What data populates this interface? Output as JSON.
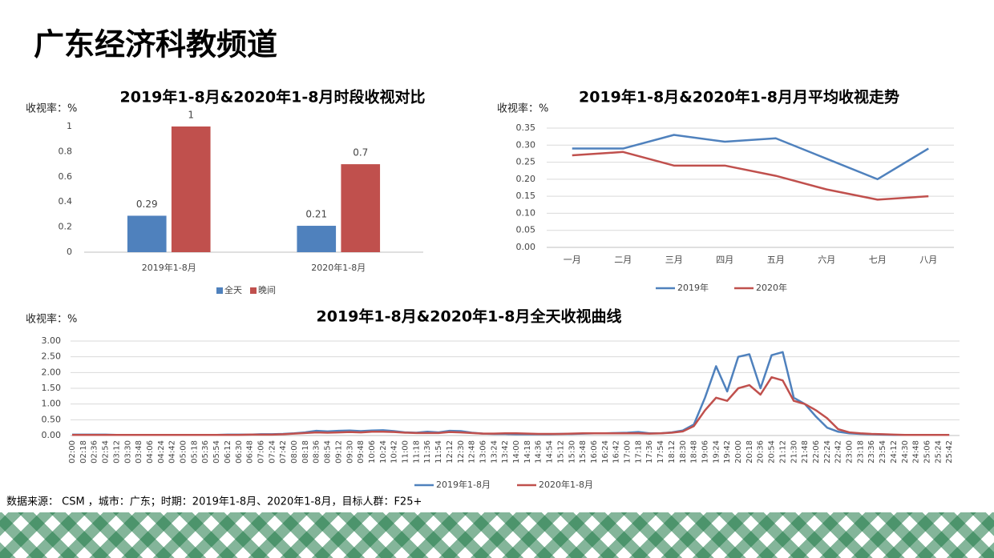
{
  "header": {
    "title": "广东经济科教频道"
  },
  "chart_data": [
    {
      "type": "bar",
      "title": "2019年1-8月&2020年1-8月时段收视对比",
      "y_label": "收视率：%",
      "categories": [
        "2019年1-8月",
        "2020年1-8月"
      ],
      "series": [
        {
          "name": "全天",
          "color": "#4f81bd",
          "values": [
            0.29,
            0.21
          ]
        },
        {
          "name": "晚间",
          "color": "#c0504d",
          "values": [
            1,
            0.7
          ]
        }
      ],
      "ylim": [
        0,
        1
      ],
      "yticks": [
        0,
        0.2,
        0.4,
        0.6,
        0.8,
        1
      ],
      "grid": false,
      "legend": "bottom"
    },
    {
      "type": "line",
      "title": "2019年1-8月&2020年1-8月月平均收视走势",
      "y_label": "收视率：%",
      "categories": [
        "一月",
        "二月",
        "三月",
        "四月",
        "五月",
        "六月",
        "七月",
        "八月"
      ],
      "series": [
        {
          "name": "2019年",
          "color": "#4f81bd",
          "values": [
            0.29,
            0.29,
            0.33,
            0.31,
            0.32,
            0.26,
            0.2,
            0.29
          ]
        },
        {
          "name": "2020年",
          "color": "#c0504d",
          "values": [
            0.27,
            0.28,
            0.24,
            0.24,
            0.21,
            0.17,
            0.14,
            0.15
          ]
        }
      ],
      "ylim": [
        0,
        0.35
      ],
      "yticks": [
        {
          "value": 0,
          "label": "0.00"
        },
        {
          "value": 0.05,
          "label": "0.05"
        },
        {
          "value": 0.1,
          "label": "0.10"
        },
        {
          "value": 0.15,
          "label": "0.15"
        },
        {
          "value": 0.2,
          "label": "0.20"
        },
        {
          "value": 0.25,
          "label": "0.25"
        },
        {
          "value": 0.3,
          "label": "0.30"
        },
        {
          "value": 0.35,
          "label": "0.35"
        }
      ],
      "grid": true,
      "legend": "bottom"
    },
    {
      "type": "line",
      "title": "2019年1-8月&2020年1-8月全天收视曲线",
      "y_label": "收视率：%",
      "categories": [
        "02:00",
        "02:18",
        "02:36",
        "02:54",
        "03:12",
        "03:30",
        "03:48",
        "04:06",
        "04:24",
        "04:42",
        "05:00",
        "05:18",
        "05:36",
        "05:54",
        "06:12",
        "06:30",
        "06:48",
        "07:06",
        "07:24",
        "07:42",
        "08:00",
        "08:18",
        "08:36",
        "08:54",
        "09:12",
        "09:30",
        "09:48",
        "10:06",
        "10:24",
        "10:42",
        "11:00",
        "11:18",
        "11:36",
        "11:54",
        "12:12",
        "12:30",
        "12:48",
        "13:06",
        "13:24",
        "13:42",
        "14:00",
        "14:18",
        "14:36",
        "14:54",
        "15:12",
        "15:30",
        "15:48",
        "16:06",
        "16:24",
        "16:42",
        "17:00",
        "17:18",
        "17:36",
        "17:54",
        "18:12",
        "18:30",
        "18:48",
        "19:06",
        "19:24",
        "19:42",
        "20:00",
        "20:18",
        "20:36",
        "20:54",
        "21:12",
        "21:30",
        "21:48",
        "22:06",
        "22:24",
        "22:42",
        "23:00",
        "23:18",
        "23:36",
        "23:54",
        "24:12",
        "24:30",
        "24:48",
        "25:06",
        "25:24",
        "25:42"
      ],
      "series": [
        {
          "name": "2019年1-8月",
          "color": "#4f81bd",
          "values": [
            0.03,
            0.03,
            0.03,
            0.03,
            0.02,
            0.02,
            0.02,
            0.02,
            0.02,
            0.02,
            0.02,
            0.02,
            0.02,
            0.02,
            0.03,
            0.03,
            0.03,
            0.04,
            0.04,
            0.05,
            0.07,
            0.1,
            0.15,
            0.13,
            0.15,
            0.16,
            0.14,
            0.16,
            0.17,
            0.14,
            0.1,
            0.09,
            0.12,
            0.1,
            0.15,
            0.14,
            0.09,
            0.06,
            0.05,
            0.05,
            0.04,
            0.04,
            0.04,
            0.04,
            0.05,
            0.05,
            0.06,
            0.07,
            0.07,
            0.08,
            0.09,
            0.11,
            0.07,
            0.07,
            0.1,
            0.16,
            0.35,
            1.2,
            2.2,
            1.4,
            2.5,
            2.58,
            1.5,
            2.55,
            2.65,
            1.2,
            1.0,
            0.6,
            0.25,
            0.12,
            0.07,
            0.05,
            0.04,
            0.03,
            0.02,
            0.02,
            0.02,
            0.02,
            0.02,
            0.02
          ]
        },
        {
          "name": "2020年1-8月",
          "color": "#c0504d",
          "values": [
            0.02,
            0.02,
            0.02,
            0.02,
            0.02,
            0.02,
            0.02,
            0.02,
            0.02,
            0.02,
            0.02,
            0.02,
            0.02,
            0.02,
            0.02,
            0.02,
            0.03,
            0.03,
            0.03,
            0.04,
            0.06,
            0.08,
            0.1,
            0.09,
            0.1,
            0.11,
            0.1,
            0.12,
            0.12,
            0.11,
            0.09,
            0.08,
            0.08,
            0.08,
            0.11,
            0.1,
            0.08,
            0.06,
            0.06,
            0.07,
            0.07,
            0.06,
            0.05,
            0.05,
            0.05,
            0.06,
            0.07,
            0.07,
            0.07,
            0.07,
            0.07,
            0.07,
            0.06,
            0.07,
            0.09,
            0.13,
            0.3,
            0.8,
            1.2,
            1.1,
            1.5,
            1.6,
            1.3,
            1.85,
            1.75,
            1.1,
            1.0,
            0.8,
            0.55,
            0.2,
            0.1,
            0.07,
            0.05,
            0.04,
            0.03,
            0.02,
            0.02,
            0.02,
            0.02,
            0.02
          ]
        }
      ],
      "ylim": [
        0,
        3
      ],
      "yticks": [
        {
          "value": 0,
          "label": "0.00"
        },
        {
          "value": 0.5,
          "label": "0.50"
        },
        {
          "value": 1,
          "label": "1.00"
        },
        {
          "value": 1.5,
          "label": "1.50"
        },
        {
          "value": 2,
          "label": "2.00"
        },
        {
          "value": 2.5,
          "label": "2.50"
        },
        {
          "value": 3,
          "label": "3.00"
        }
      ],
      "grid": true,
      "legend": "bottom"
    }
  ],
  "footer": {
    "source": "数据来源： CSM ，城市：广东；时期：2019年1-8月、2020年1-8月，目标人群：F25+"
  }
}
